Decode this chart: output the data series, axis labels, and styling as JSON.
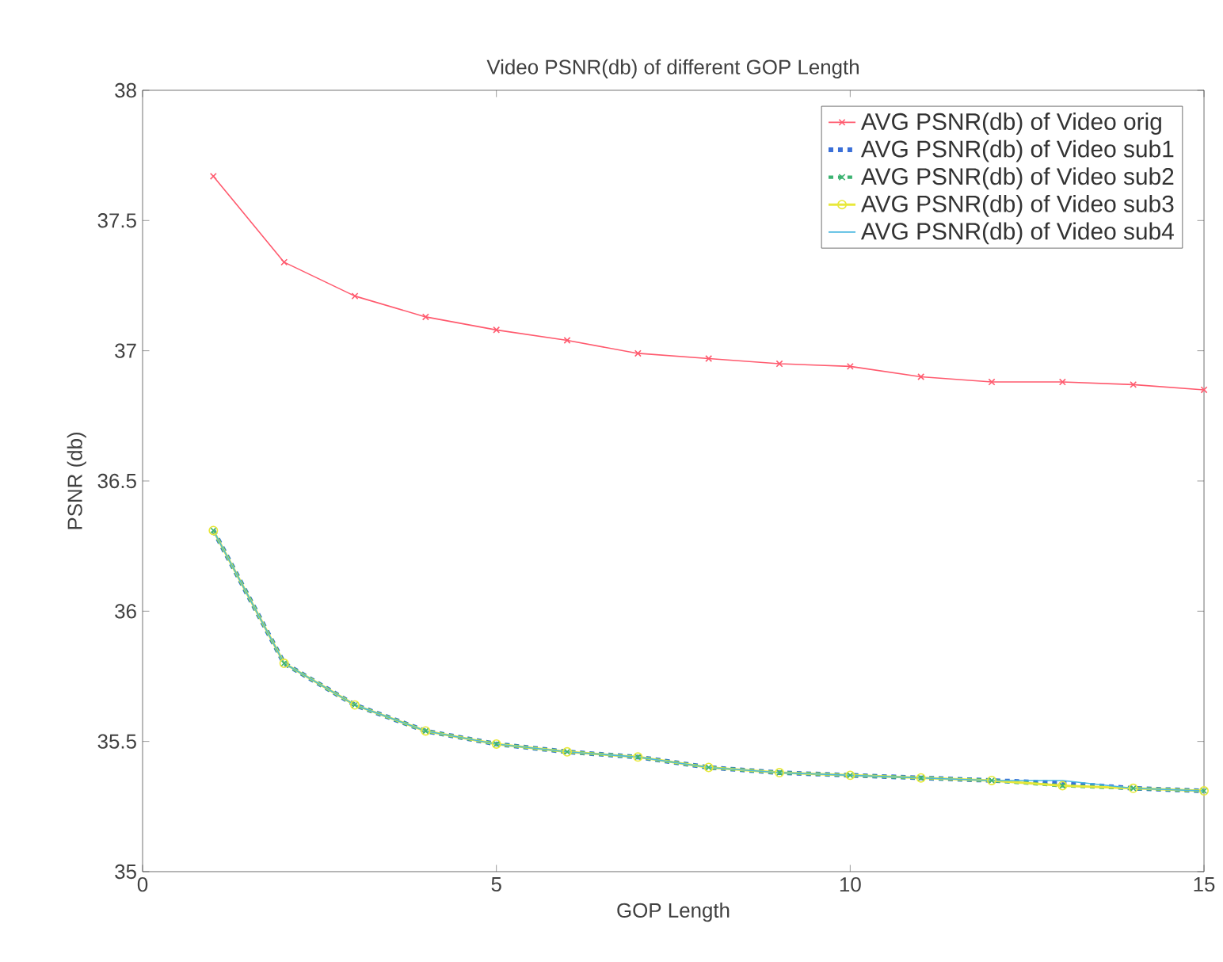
{
  "chart_data": {
    "type": "line",
    "title": "Video PSNR(db) of different GOP Length",
    "xlabel": "GOP Length",
    "ylabel": "PSNR (db)",
    "x": [
      1,
      2,
      3,
      4,
      5,
      6,
      7,
      8,
      9,
      10,
      11,
      12,
      13,
      14,
      15
    ],
    "xlim": [
      0,
      15
    ],
    "xticks": [
      0,
      5,
      10,
      15
    ],
    "ylim": [
      35,
      38
    ],
    "yticks": [
      35,
      35.5,
      36,
      36.5,
      37,
      37.5,
      38
    ],
    "legend": "top right",
    "series": [
      {
        "name": "AVG PSNR(db) of Video orig",
        "color": "#ff5a6e",
        "marker": "cross",
        "line_style": "solid",
        "values": [
          37.67,
          37.34,
          37.21,
          37.13,
          37.08,
          37.04,
          36.99,
          36.97,
          36.95,
          36.94,
          36.9,
          36.88,
          36.88,
          36.87,
          36.85
        ]
      },
      {
        "name": "AVG PSNR(db) of Video sub1",
        "color": "#3a6fd8",
        "marker": "none",
        "line_style": "dashed",
        "values": [
          36.31,
          35.8,
          35.64,
          35.54,
          35.49,
          35.46,
          35.44,
          35.4,
          35.38,
          35.37,
          35.36,
          35.35,
          35.34,
          35.32,
          35.31
        ]
      },
      {
        "name": "AVG PSNR(db) of Video sub2",
        "color": "#3cb371",
        "marker": "cross",
        "line_style": "dashed",
        "values": [
          36.31,
          35.8,
          35.64,
          35.54,
          35.49,
          35.46,
          35.44,
          35.4,
          35.38,
          35.37,
          35.36,
          35.35,
          35.33,
          35.32,
          35.31
        ]
      },
      {
        "name": "AVG PSNR(db) of Video sub3",
        "color": "#e8e83a",
        "marker": "circle",
        "line_style": "solid",
        "values": [
          36.31,
          35.8,
          35.64,
          35.54,
          35.49,
          35.46,
          35.44,
          35.4,
          35.38,
          35.37,
          35.36,
          35.35,
          35.33,
          35.32,
          35.31
        ]
      },
      {
        "name": "AVG PSNR(db) of Video sub4",
        "color": "#4ab8e0",
        "marker": "none",
        "line_style": "solid",
        "values": [
          36.31,
          35.8,
          35.64,
          35.54,
          35.49,
          35.46,
          35.44,
          35.4,
          35.38,
          35.37,
          35.36,
          35.35,
          35.35,
          35.32,
          35.31
        ]
      }
    ]
  }
}
